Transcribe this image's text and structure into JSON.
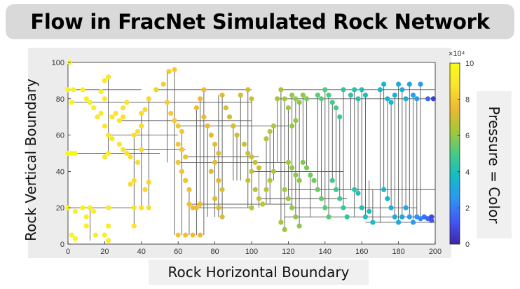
{
  "title": "Flow in FracNet Simulated Rock Network",
  "chart_data": {
    "type": "scatter",
    "xlabel": "Rock Horizontal Boundary",
    "ylabel": "Rock Vertical Boundary",
    "xlim": [
      0,
      200
    ],
    "ylim": [
      0,
      100
    ],
    "xticks": [
      "0",
      "20",
      "40",
      "60",
      "80",
      "100",
      "120",
      "140",
      "160",
      "180",
      "200"
    ],
    "yticks": [
      "0",
      "20",
      "40",
      "60",
      "80",
      "100"
    ],
    "grid": false,
    "colorbar": {
      "label": "Pressure = Color",
      "multiplier": "×10⁴",
      "range": [
        0,
        10
      ],
      "ticks": [
        "0",
        "2",
        "4",
        "6",
        "8",
        "10"
      ],
      "colormap": [
        "#3e26a8",
        "#4257f5",
        "#2c96f4",
        "#14bcc5",
        "#47cb84",
        "#a3c73a",
        "#edb932",
        "#fbe32f",
        "#f9fb15"
      ]
    },
    "nodes": [
      [
        0,
        50,
        9.8
      ],
      [
        2,
        50,
        9.8
      ],
      [
        4,
        50,
        9.8
      ],
      [
        0,
        85,
        9.7
      ],
      [
        3,
        85,
        9.7
      ],
      [
        1,
        100,
        9.8
      ],
      [
        2,
        78,
        9.6
      ],
      [
        2,
        5,
        9.6
      ],
      [
        4,
        3,
        9.6
      ],
      [
        0,
        20,
        9.5
      ],
      [
        4,
        18,
        9.5
      ],
      [
        8,
        20,
        9.4
      ],
      [
        10,
        15,
        9.4
      ],
      [
        12,
        20,
        9.3
      ],
      [
        14,
        18,
        9.3
      ],
      [
        10,
        10,
        9.3
      ],
      [
        15,
        5,
        9.3
      ],
      [
        20,
        5,
        9.2
      ],
      [
        22,
        10,
        9.1
      ],
      [
        22,
        20,
        9.1
      ],
      [
        22,
        2,
        9.2
      ],
      [
        8,
        85,
        9.3
      ],
      [
        10,
        80,
        9.3
      ],
      [
        12,
        78,
        9.2
      ],
      [
        14,
        75,
        9.2
      ],
      [
        16,
        70,
        9.1
      ],
      [
        18,
        72,
        9.0
      ],
      [
        20,
        65,
        9.0
      ],
      [
        22,
        60,
        8.9
      ],
      [
        24,
        58,
        8.9
      ],
      [
        20,
        80,
        9.0
      ],
      [
        18,
        84,
        9.1
      ],
      [
        20,
        90,
        9.0
      ],
      [
        22,
        92,
        8.9
      ],
      [
        24,
        70,
        8.9
      ],
      [
        26,
        72,
        8.8
      ],
      [
        28,
        68,
        8.8
      ],
      [
        30,
        70,
        8.7
      ],
      [
        30,
        75,
        8.7
      ],
      [
        32,
        78,
        8.7
      ],
      [
        28,
        55,
        8.8
      ],
      [
        30,
        52,
        8.7
      ],
      [
        32,
        50,
        8.7
      ],
      [
        34,
        48,
        8.6
      ],
      [
        22,
        50,
        9.0
      ],
      [
        20,
        48,
        9.0
      ],
      [
        36,
        60,
        8.6
      ],
      [
        38,
        62,
        8.6
      ],
      [
        40,
        65,
        8.5
      ],
      [
        40,
        72,
        8.5
      ],
      [
        42,
        74,
        8.5
      ],
      [
        44,
        80,
        8.4
      ],
      [
        40,
        52,
        8.5
      ],
      [
        38,
        45,
        8.5
      ],
      [
        36,
        35,
        8.6
      ],
      [
        34,
        33,
        8.6
      ],
      [
        36,
        20,
        8.7
      ],
      [
        40,
        20,
        8.7
      ],
      [
        44,
        20,
        8.6
      ],
      [
        36,
        10,
        8.8
      ],
      [
        44,
        34,
        8.4
      ],
      [
        42,
        30,
        8.4
      ],
      [
        48,
        85,
        8.2
      ],
      [
        52,
        88,
        8.1
      ],
      [
        55,
        95,
        8.0
      ],
      [
        58,
        96,
        8.0
      ],
      [
        54,
        78,
        8.1
      ],
      [
        56,
        72,
        8.0
      ],
      [
        58,
        68,
        8.0
      ],
      [
        60,
        65,
        7.9
      ],
      [
        62,
        62,
        7.9
      ],
      [
        60,
        55,
        7.9
      ],
      [
        62,
        52,
        7.9
      ],
      [
        64,
        48,
        7.8
      ],
      [
        60,
        45,
        7.9
      ],
      [
        62,
        40,
        7.8
      ],
      [
        64,
        35,
        7.8
      ],
      [
        66,
        30,
        7.7
      ],
      [
        66,
        22,
        7.7
      ],
      [
        68,
        20,
        7.6
      ],
      [
        70,
        20,
        7.6
      ],
      [
        72,
        22,
        7.6
      ],
      [
        60,
        5,
        7.8
      ],
      [
        64,
        5,
        7.7
      ],
      [
        68,
        5,
        7.6
      ],
      [
        72,
        5,
        7.6
      ],
      [
        74,
        85,
        7.6
      ],
      [
        72,
        80,
        7.6
      ],
      [
        70,
        75,
        7.6
      ],
      [
        74,
        70,
        7.5
      ],
      [
        76,
        65,
        7.5
      ],
      [
        78,
        60,
        7.4
      ],
      [
        80,
        55,
        7.4
      ],
      [
        82,
        50,
        7.3
      ],
      [
        80,
        45,
        7.3
      ],
      [
        78,
        40,
        7.3
      ],
      [
        82,
        35,
        7.2
      ],
      [
        84,
        30,
        7.2
      ],
      [
        80,
        25,
        7.3
      ],
      [
        82,
        20,
        7.2
      ],
      [
        84,
        15,
        7.2
      ],
      [
        84,
        82,
        7.3
      ],
      [
        86,
        75,
        7.2
      ],
      [
        88,
        70,
        7.1
      ],
      [
        90,
        65,
        7.1
      ],
      [
        92,
        60,
        7.0
      ],
      [
        94,
        82,
        7.0
      ],
      [
        98,
        85,
        6.9
      ],
      [
        100,
        80,
        6.9
      ],
      [
        96,
        55,
        6.9
      ],
      [
        98,
        50,
        6.9
      ],
      [
        100,
        48,
        6.8
      ],
      [
        102,
        45,
        6.8
      ],
      [
        104,
        42,
        6.8
      ],
      [
        100,
        40,
        6.8
      ],
      [
        98,
        35,
        6.8
      ],
      [
        102,
        30,
        6.7
      ],
      [
        104,
        25,
        6.7
      ],
      [
        100,
        20,
        6.7
      ],
      [
        106,
        22,
        6.6
      ],
      [
        108,
        30,
        6.6
      ],
      [
        110,
        35,
        6.5
      ],
      [
        112,
        40,
        6.5
      ],
      [
        108,
        58,
        6.6
      ],
      [
        110,
        62,
        6.5
      ],
      [
        112,
        65,
        6.5
      ],
      [
        114,
        80,
        6.4
      ],
      [
        116,
        85,
        6.3
      ],
      [
        118,
        80,
        6.3
      ],
      [
        120,
        75,
        6.2
      ],
      [
        122,
        82,
        6.1
      ],
      [
        124,
        80,
        6.0
      ],
      [
        126,
        78,
        5.9
      ],
      [
        128,
        82,
        5.9
      ],
      [
        130,
        80,
        5.8
      ],
      [
        122,
        65,
        6.1
      ],
      [
        124,
        68,
        6.0
      ],
      [
        120,
        45,
        6.2
      ],
      [
        122,
        42,
        6.1
      ],
      [
        124,
        38,
        6.0
      ],
      [
        126,
        35,
        5.9
      ],
      [
        118,
        30,
        6.2
      ],
      [
        120,
        25,
        6.1
      ],
      [
        122,
        20,
        6.0
      ],
      [
        124,
        15,
        6.0
      ],
      [
        126,
        10,
        5.9
      ],
      [
        118,
        8,
        6.2
      ],
      [
        116,
        12,
        6.3
      ],
      [
        128,
        45,
        5.8
      ],
      [
        130,
        42,
        5.7
      ],
      [
        132,
        38,
        5.6
      ],
      [
        134,
        35,
        5.6
      ],
      [
        136,
        30,
        5.5
      ],
      [
        138,
        25,
        5.4
      ],
      [
        140,
        20,
        5.3
      ],
      [
        142,
        15,
        5.3
      ],
      [
        136,
        82,
        5.3
      ],
      [
        138,
        80,
        5.2
      ],
      [
        140,
        85,
        5.1
      ],
      [
        142,
        82,
        5.0
      ],
      [
        144,
        78,
        5.0
      ],
      [
        146,
        75,
        4.9
      ],
      [
        148,
        70,
        4.8
      ],
      [
        144,
        35,
        4.9
      ],
      [
        146,
        30,
        4.8
      ],
      [
        148,
        25,
        4.7
      ],
      [
        150,
        20,
        4.6
      ],
      [
        152,
        15,
        4.5
      ],
      [
        150,
        85,
        4.5
      ],
      [
        154,
        82,
        4.4
      ],
      [
        156,
        85,
        4.3
      ],
      [
        158,
        80,
        4.2
      ],
      [
        160,
        85,
        4.1
      ],
      [
        162,
        82,
        4.0
      ],
      [
        156,
        30,
        4.3
      ],
      [
        158,
        28,
        4.2
      ],
      [
        160,
        20,
        4.1
      ],
      [
        162,
        15,
        4.0
      ],
      [
        164,
        18,
        3.9
      ],
      [
        166,
        12,
        3.8
      ],
      [
        170,
        85,
        3.7
      ],
      [
        172,
        88,
        3.6
      ],
      [
        174,
        80,
        3.5
      ],
      [
        176,
        78,
        3.5
      ],
      [
        178,
        82,
        3.4
      ],
      [
        180,
        88,
        3.3
      ],
      [
        182,
        85,
        3.2
      ],
      [
        184,
        80,
        3.1
      ],
      [
        186,
        88,
        3.0
      ],
      [
        188,
        82,
        2.9
      ],
      [
        190,
        80,
        2.8
      ],
      [
        192,
        88,
        2.7
      ],
      [
        172,
        30,
        3.6
      ],
      [
        174,
        25,
        3.5
      ],
      [
        176,
        20,
        3.4
      ],
      [
        178,
        15,
        3.3
      ],
      [
        180,
        12,
        3.2
      ],
      [
        182,
        15,
        3.1
      ],
      [
        184,
        20,
        3.0
      ],
      [
        186,
        15,
        2.8
      ],
      [
        188,
        12,
        2.6
      ],
      [
        190,
        15,
        2.4
      ],
      [
        192,
        14,
        2.2
      ],
      [
        194,
        15,
        1.8
      ],
      [
        196,
        14,
        1.5
      ],
      [
        198,
        13,
        1.2
      ],
      [
        199,
        80,
        0.6
      ],
      [
        196,
        80,
        1.5
      ],
      [
        198,
        15,
        0.9
      ]
    ],
    "edges": [
      [
        0,
        50,
        50,
        50
      ],
      [
        0,
        85,
        40,
        85
      ],
      [
        2,
        78,
        100,
        78
      ],
      [
        0,
        20,
        36,
        20
      ],
      [
        12,
        20,
        12,
        2
      ],
      [
        22,
        92,
        22,
        50
      ],
      [
        22,
        60,
        60,
        60
      ],
      [
        28,
        68,
        100,
        68
      ],
      [
        30,
        52,
        64,
        52
      ],
      [
        36,
        60,
        36,
        10
      ],
      [
        40,
        72,
        40,
        20
      ],
      [
        44,
        80,
        44,
        20
      ],
      [
        48,
        85,
        100,
        85
      ],
      [
        54,
        96,
        54,
        45
      ],
      [
        58,
        96,
        58,
        5
      ],
      [
        60,
        65,
        120,
        65
      ],
      [
        62,
        62,
        62,
        5
      ],
      [
        64,
        48,
        104,
        48
      ],
      [
        66,
        30,
        66,
        5
      ],
      [
        60,
        45,
        120,
        45
      ],
      [
        70,
        75,
        70,
        5
      ],
      [
        72,
        80,
        72,
        20
      ],
      [
        74,
        85,
        74,
        5
      ],
      [
        76,
        65,
        76,
        15
      ],
      [
        80,
        55,
        80,
        15
      ],
      [
        82,
        82,
        82,
        15
      ],
      [
        84,
        82,
        84,
        15
      ],
      [
        66,
        22,
        122,
        22
      ],
      [
        70,
        20,
        100,
        20
      ],
      [
        90,
        65,
        90,
        35
      ],
      [
        92,
        60,
        92,
        35
      ],
      [
        94,
        82,
        94,
        35
      ],
      [
        98,
        85,
        98,
        20
      ],
      [
        100,
        80,
        100,
        20
      ],
      [
        104,
        42,
        104,
        20
      ],
      [
        108,
        58,
        108,
        22
      ],
      [
        110,
        62,
        110,
        22
      ],
      [
        112,
        65,
        112,
        35
      ],
      [
        100,
        40,
        150,
        40
      ],
      [
        104,
        25,
        152,
        25
      ],
      [
        114,
        80,
        114,
        45
      ],
      [
        116,
        85,
        116,
        12
      ],
      [
        118,
        80,
        118,
        8
      ],
      [
        120,
        75,
        120,
        25
      ],
      [
        122,
        82,
        122,
        20
      ],
      [
        124,
        80,
        124,
        15
      ],
      [
        126,
        78,
        126,
        10
      ],
      [
        128,
        82,
        128,
        45
      ],
      [
        130,
        80,
        130,
        42
      ],
      [
        114,
        80,
        200,
        80
      ],
      [
        116,
        85,
        200,
        85
      ],
      [
        132,
        38,
        132,
        15
      ],
      [
        136,
        82,
        136,
        30
      ],
      [
        138,
        80,
        138,
        25
      ],
      [
        140,
        85,
        140,
        20
      ],
      [
        142,
        82,
        142,
        15
      ],
      [
        144,
        78,
        144,
        35
      ],
      [
        146,
        75,
        146,
        30
      ],
      [
        148,
        70,
        148,
        25
      ],
      [
        150,
        85,
        150,
        20
      ],
      [
        120,
        30,
        200,
        30
      ],
      [
        118,
        15,
        200,
        15
      ],
      [
        122,
        20,
        190,
        20
      ],
      [
        154,
        82,
        154,
        30
      ],
      [
        156,
        85,
        156,
        15
      ],
      [
        158,
        80,
        158,
        28
      ],
      [
        160,
        85,
        160,
        20
      ],
      [
        162,
        82,
        162,
        15
      ],
      [
        164,
        35,
        164,
        18
      ],
      [
        166,
        30,
        166,
        12
      ],
      [
        170,
        85,
        170,
        12
      ],
      [
        172,
        88,
        172,
        30
      ],
      [
        174,
        80,
        174,
        25
      ],
      [
        176,
        78,
        176,
        20
      ],
      [
        178,
        82,
        178,
        15
      ],
      [
        180,
        88,
        180,
        12
      ],
      [
        182,
        85,
        182,
        15
      ],
      [
        184,
        80,
        184,
        20
      ],
      [
        186,
        88,
        186,
        15
      ],
      [
        188,
        82,
        188,
        12
      ],
      [
        190,
        80,
        190,
        15
      ],
      [
        192,
        88,
        192,
        14
      ],
      [
        162,
        12,
        200,
        12
      ]
    ]
  }
}
